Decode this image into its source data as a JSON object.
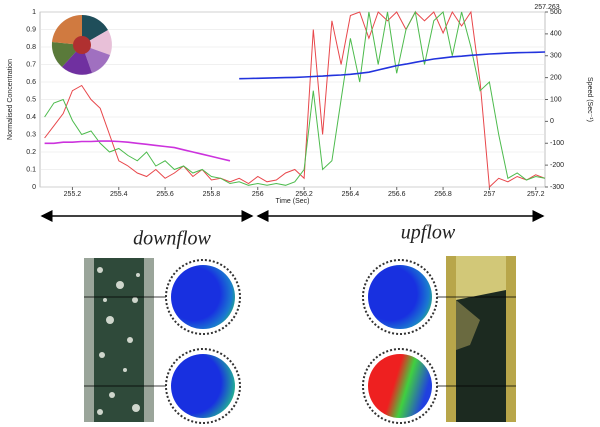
{
  "chart_data": {
    "type": "line",
    "x_label": "Time (Sec)",
    "y_label": "Normalised Concentration",
    "y2_label": "Speed (Sec⁻¹)",
    "annotations": [
      "257.263",
      "downflow",
      "upflow"
    ],
    "x": [
      255.08,
      255.12,
      255.16,
      255.2,
      255.24,
      255.28,
      255.32,
      255.36,
      255.4,
      255.44,
      255.48,
      255.52,
      255.56,
      255.6,
      255.64,
      255.68,
      255.72,
      255.76,
      255.8,
      255.84,
      255.88,
      255.92,
      255.96,
      256.0,
      256.04,
      256.08,
      256.12,
      256.16,
      256.2,
      256.24,
      256.28,
      256.32,
      256.36,
      256.4,
      256.44,
      256.48,
      256.52,
      256.56,
      256.6,
      256.64,
      256.68,
      256.72,
      256.76,
      256.8,
      256.84,
      256.88,
      256.92,
      256.96,
      257.0,
      257.04,
      257.08,
      257.12,
      257.16,
      257.2,
      257.24
    ],
    "xlim": [
      255.06,
      257.24
    ],
    "xticks": [
      {
        "value": 255.2,
        "label": "255.2"
      },
      {
        "value": 255.4,
        "label": "255.4"
      },
      {
        "value": 255.6,
        "label": "255.6"
      },
      {
        "value": 255.8,
        "label": "255.8"
      },
      256,
      {
        "value": 256.2,
        "label": "256.2"
      },
      {
        "value": 256.4,
        "label": "256.4"
      },
      {
        "value": 256.6,
        "label": "256.6"
      },
      {
        "value": 256.8,
        "label": "256.8"
      },
      257,
      {
        "value": 257.2,
        "label": "257.2"
      }
    ],
    "ylim": [
      0,
      1
    ],
    "yticks": [
      0,
      0.1,
      0.2,
      0.3,
      0.4,
      0.5,
      0.6,
      0.7,
      0.8,
      0.9,
      1
    ],
    "y2lim": [
      -300,
      500
    ],
    "y2ticks": [
      -300,
      -200,
      -100,
      0,
      100,
      200,
      300,
      400,
      500
    ],
    "grid": true,
    "series": [
      {
        "color": "#e8474b",
        "values": [
          0.28,
          0.35,
          0.42,
          0.55,
          0.58,
          0.5,
          0.45,
          0.3,
          0.15,
          0.12,
          0.08,
          0.06,
          0.1,
          0.05,
          0.08,
          0.12,
          0.06,
          0.1,
          0.04,
          0.05,
          0.03,
          0.05,
          0.02,
          0.06,
          0.03,
          0.04,
          0.08,
          0.1,
          0.05,
          0.9,
          0.3,
          0.95,
          0.7,
          0.98,
          1,
          0.85,
          1,
          0.95,
          1,
          0.9,
          1,
          0.95,
          1,
          0.88,
          1,
          0.92,
          1,
          0.6,
          0,
          0.05,
          0.03,
          0.06,
          0.04,
          0.07,
          0.05
        ]
      },
      {
        "color": "#4dbb4d",
        "values": [
          0.4,
          0.48,
          0.5,
          0.38,
          0.3,
          0.32,
          0.25,
          0.2,
          0.22,
          0.18,
          0.15,
          0.2,
          0.12,
          0.15,
          0.1,
          0.12,
          0.08,
          0.1,
          0.06,
          0.05,
          0.02,
          0.03,
          0.01,
          0.02,
          0.01,
          0.02,
          0.01,
          0.03,
          0.1,
          0.55,
          0.1,
          0.15,
          0.5,
          0.85,
          0.6,
          1,
          0.7,
          1,
          0.65,
          0.9,
          1,
          0.7,
          0.95,
          1,
          0.75,
          1,
          0.8,
          0.55,
          0.6,
          0.3,
          0.05,
          0.08,
          0.04,
          0.06,
          0.05
        ]
      },
      {
        "color": "#cc33dd",
        "axis": "y2",
        "values": [
          -100,
          -100,
          -95,
          -95,
          -92,
          -92,
          -90,
          -90,
          -92,
          -95,
          -100,
          -105,
          -110,
          -115,
          -120,
          -130,
          -140,
          -150,
          -160,
          -170,
          -180,
          null,
          null,
          null,
          null,
          null,
          null,
          null,
          null,
          null,
          null,
          null,
          null,
          null,
          null,
          null,
          null,
          null,
          null,
          null,
          null,
          null,
          null,
          null,
          null,
          null,
          null,
          null,
          null,
          null,
          null,
          null,
          null,
          null,
          null
        ]
      },
      {
        "color": "#2233dd",
        "axis": "y2",
        "values": [
          null,
          null,
          null,
          null,
          null,
          null,
          null,
          null,
          null,
          null,
          null,
          null,
          null,
          null,
          null,
          null,
          null,
          null,
          null,
          null,
          null,
          195,
          196,
          197,
          198,
          199,
          200,
          201,
          203,
          205,
          207,
          210,
          212,
          215,
          220,
          225,
          235,
          245,
          255,
          262,
          270,
          278,
          285,
          290,
          295,
          298,
          302,
          305,
          308,
          310,
          312,
          314,
          315,
          316,
          317
        ]
      }
    ]
  }
}
